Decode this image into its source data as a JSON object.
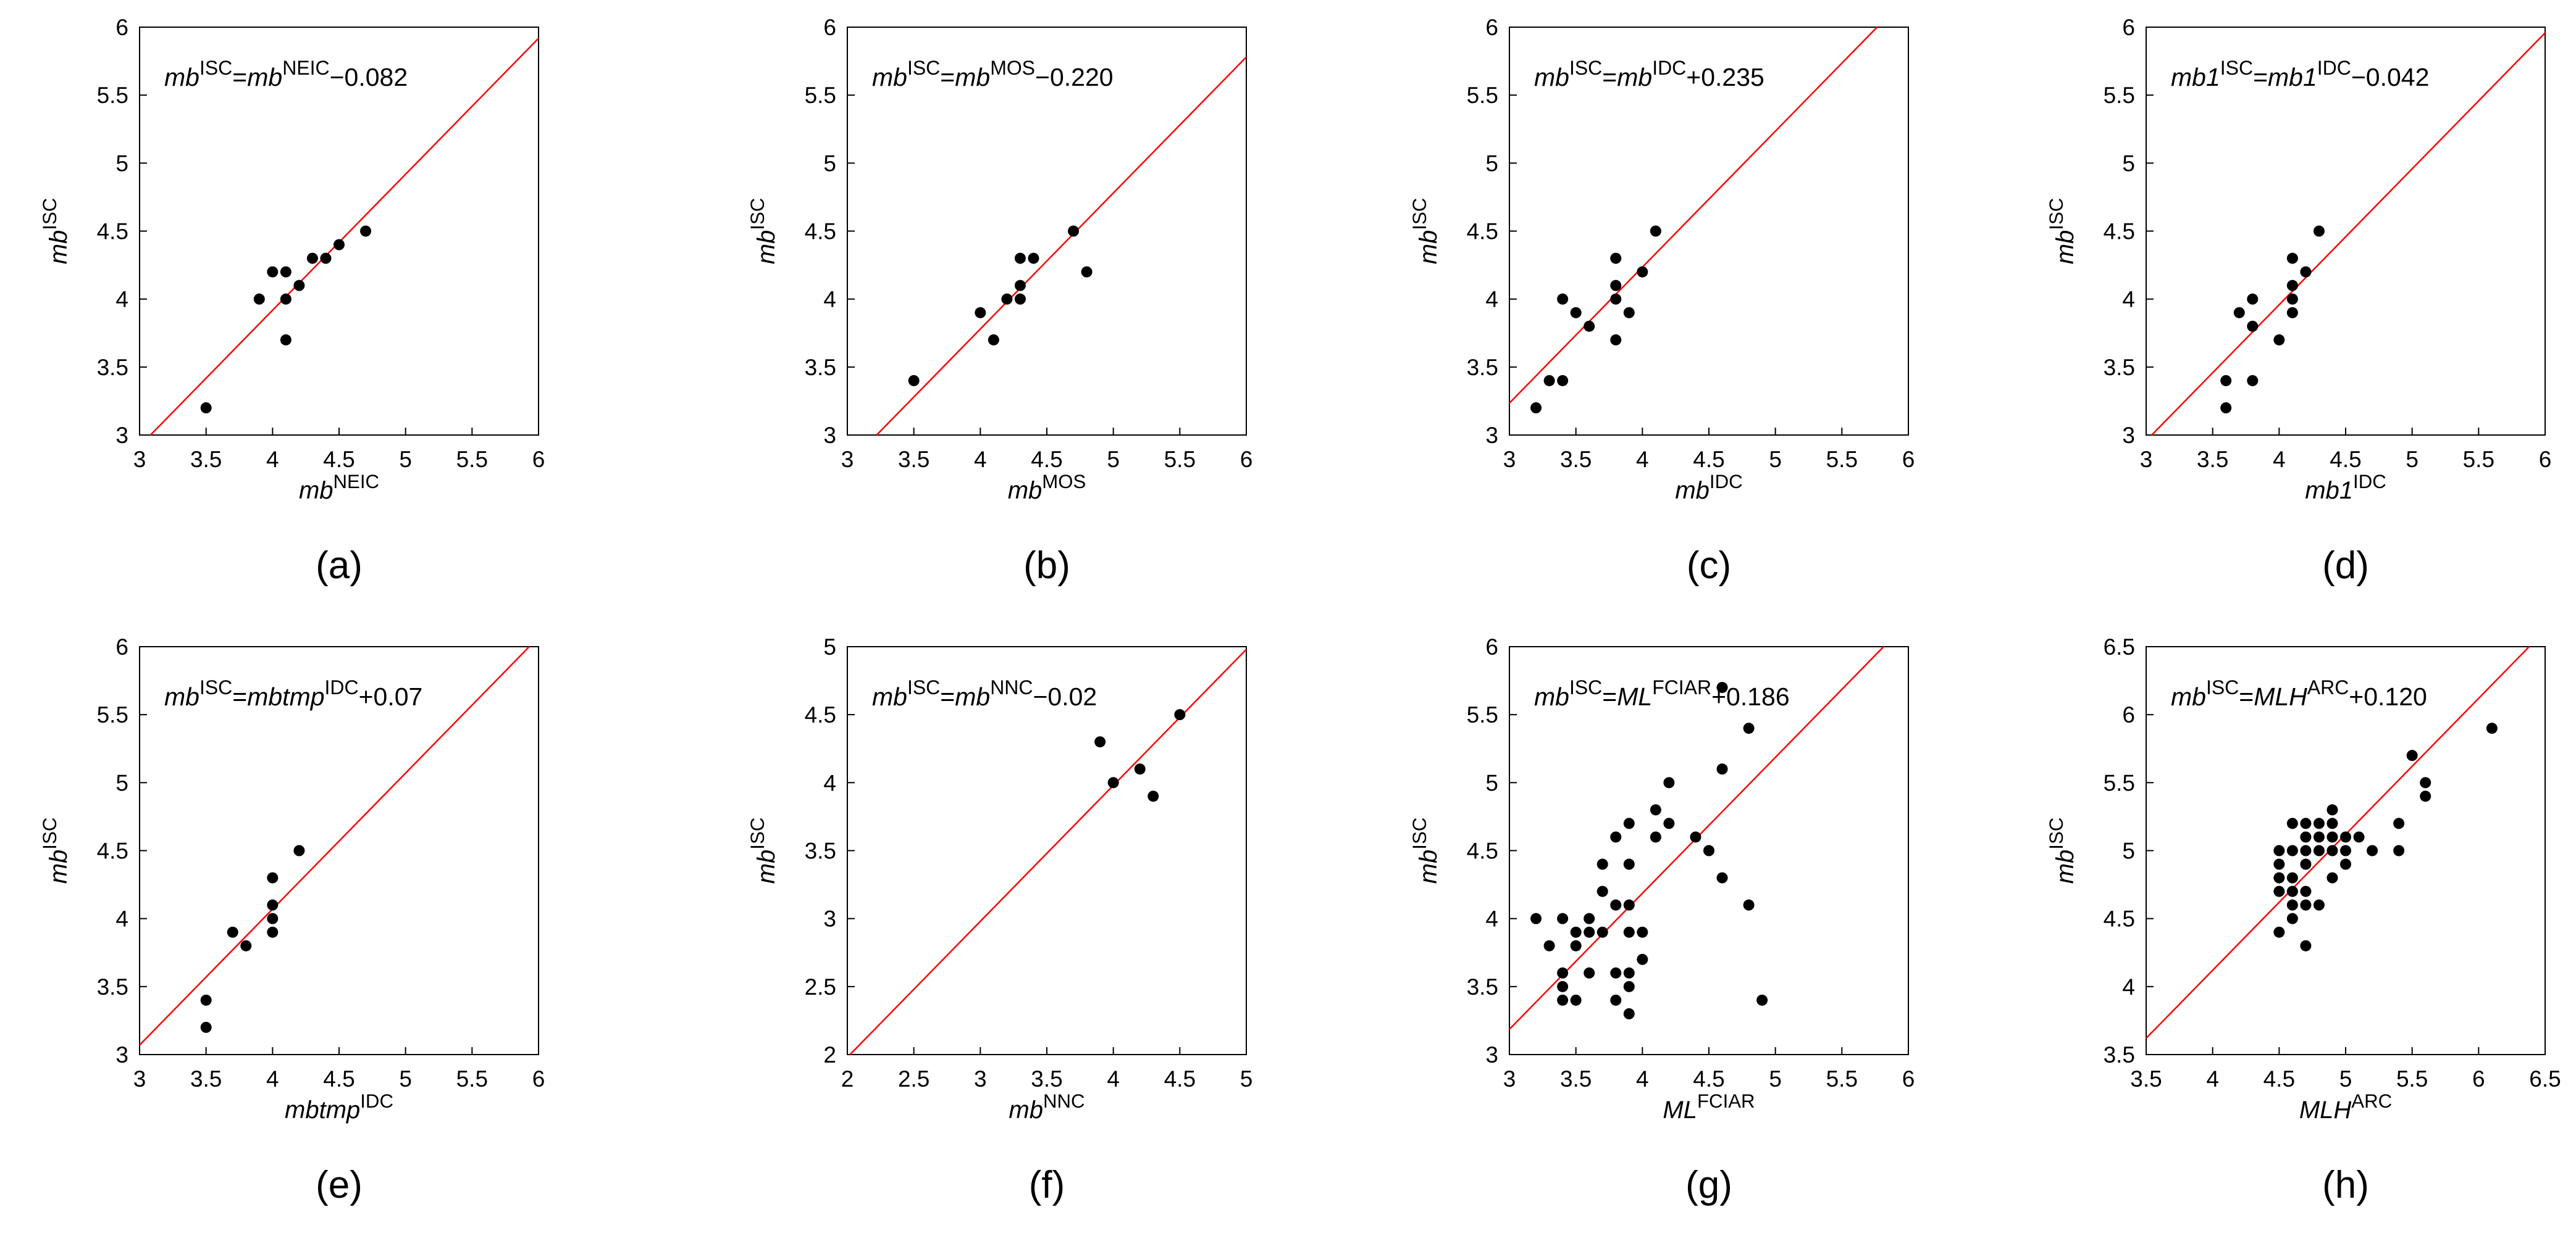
{
  "figure": {
    "panels_count": 8
  },
  "chart_data": [
    {
      "type": "scatter",
      "panel_label": "(a)",
      "equation": {
        "parts": [
          [
            "mb",
            "i"
          ],
          [
            "ISC",
            "sup"
          ],
          [
            "=",
            "n"
          ],
          [
            "mb",
            "i"
          ],
          [
            "NEIC",
            "sup"
          ],
          [
            "−0.082",
            "n"
          ]
        ]
      },
      "xlabel": {
        "parts": [
          [
            "mb",
            "i"
          ],
          [
            "NEIC",
            "sup"
          ]
        ]
      },
      "ylabel": {
        "parts": [
          [
            "mb",
            "i"
          ],
          [
            "ISC",
            "sup"
          ]
        ]
      },
      "xlim": [
        3,
        6
      ],
      "ylim": [
        3,
        6
      ],
      "xticks": [
        3,
        3.5,
        4,
        4.5,
        5,
        5.5,
        6
      ],
      "yticks": [
        3,
        3.5,
        4,
        4.5,
        5,
        5.5,
        6
      ],
      "xtick_labels": [
        "3",
        "3.5",
        "4",
        "4.5",
        "5",
        "5.5",
        "6"
      ],
      "ytick_labels": [
        "3",
        "3.5",
        "4",
        "4.5",
        "5",
        "5.5",
        "6"
      ],
      "fit_line": {
        "slope": 1,
        "intercept": -0.082,
        "color": "#ff0000"
      },
      "point_color": "#000000",
      "points": [
        [
          3.5,
          3.2
        ],
        [
          3.9,
          4.0
        ],
        [
          4.0,
          4.2
        ],
        [
          4.1,
          4.2
        ],
        [
          4.1,
          4.0
        ],
        [
          4.1,
          3.7
        ],
        [
          4.2,
          4.1
        ],
        [
          4.3,
          4.3
        ],
        [
          4.4,
          4.3
        ],
        [
          4.5,
          4.4
        ],
        [
          4.7,
          4.5
        ]
      ]
    },
    {
      "type": "scatter",
      "panel_label": "(b)",
      "equation": {
        "parts": [
          [
            "mb",
            "i"
          ],
          [
            "ISC",
            "sup"
          ],
          [
            "=",
            "n"
          ],
          [
            "mb",
            "i"
          ],
          [
            "MOS",
            "sup"
          ],
          [
            "−0.220",
            "n"
          ]
        ]
      },
      "xlabel": {
        "parts": [
          [
            "mb",
            "i"
          ],
          [
            "MOS",
            "sup"
          ]
        ]
      },
      "ylabel": {
        "parts": [
          [
            "mb",
            "i"
          ],
          [
            "ISC",
            "sup"
          ]
        ]
      },
      "xlim": [
        3,
        6
      ],
      "ylim": [
        3,
        6
      ],
      "xticks": [
        3,
        3.5,
        4,
        4.5,
        5,
        5.5,
        6
      ],
      "yticks": [
        3,
        3.5,
        4,
        4.5,
        5,
        5.5,
        6
      ],
      "xtick_labels": [
        "3",
        "3.5",
        "4",
        "4.5",
        "5",
        "5.5",
        "6"
      ],
      "ytick_labels": [
        "3",
        "3.5",
        "4",
        "4.5",
        "5",
        "5.5",
        "6"
      ],
      "fit_line": {
        "slope": 1,
        "intercept": -0.22,
        "color": "#ff0000"
      },
      "point_color": "#000000",
      "points": [
        [
          3.5,
          3.4
        ],
        [
          4.0,
          3.9
        ],
        [
          4.1,
          3.7
        ],
        [
          4.2,
          4.0
        ],
        [
          4.3,
          4.3
        ],
        [
          4.3,
          4.1
        ],
        [
          4.3,
          4.0
        ],
        [
          4.4,
          4.3
        ],
        [
          4.7,
          4.5
        ],
        [
          4.8,
          4.2
        ]
      ]
    },
    {
      "type": "scatter",
      "panel_label": "(c)",
      "equation": {
        "parts": [
          [
            "mb",
            "i"
          ],
          [
            "ISC",
            "sup"
          ],
          [
            "=",
            "n"
          ],
          [
            "mb",
            "i"
          ],
          [
            "IDC",
            "sup"
          ],
          [
            "+0.235",
            "n"
          ]
        ]
      },
      "xlabel": {
        "parts": [
          [
            "mb",
            "i"
          ],
          [
            "IDC",
            "sup"
          ]
        ]
      },
      "ylabel": {
        "parts": [
          [
            "mb",
            "i"
          ],
          [
            "ISC",
            "sup"
          ]
        ]
      },
      "xlim": [
        3,
        6
      ],
      "ylim": [
        3,
        6
      ],
      "xticks": [
        3,
        3.5,
        4,
        4.5,
        5,
        5.5,
        6
      ],
      "yticks": [
        3,
        3.5,
        4,
        4.5,
        5,
        5.5,
        6
      ],
      "xtick_labels": [
        "3",
        "3.5",
        "4",
        "4.5",
        "5",
        "5.5",
        "6"
      ],
      "ytick_labels": [
        "3",
        "3.5",
        "4",
        "4.5",
        "5",
        "5.5",
        "6"
      ],
      "fit_line": {
        "slope": 1,
        "intercept": 0.235,
        "color": "#ff0000"
      },
      "point_color": "#000000",
      "points": [
        [
          3.2,
          3.2
        ],
        [
          3.3,
          3.4
        ],
        [
          3.4,
          3.4
        ],
        [
          3.4,
          4.0
        ],
        [
          3.5,
          3.9
        ],
        [
          3.6,
          3.8
        ],
        [
          3.8,
          4.3
        ],
        [
          3.8,
          4.1
        ],
        [
          3.8,
          4.0
        ],
        [
          3.8,
          3.7
        ],
        [
          3.9,
          3.9
        ],
        [
          4.0,
          4.2
        ],
        [
          4.1,
          4.5
        ]
      ]
    },
    {
      "type": "scatter",
      "panel_label": "(d)",
      "equation": {
        "parts": [
          [
            "mb1",
            "i"
          ],
          [
            "ISC",
            "sup"
          ],
          [
            "=",
            "n"
          ],
          [
            "mb1",
            "i"
          ],
          [
            "IDC",
            "sup"
          ],
          [
            "−0.042",
            "n"
          ]
        ]
      },
      "xlabel": {
        "parts": [
          [
            "mb1",
            "i"
          ],
          [
            "IDC",
            "sup"
          ]
        ]
      },
      "ylabel": {
        "parts": [
          [
            "mb",
            "i"
          ],
          [
            "ISC",
            "sup"
          ]
        ]
      },
      "xlim": [
        3,
        6
      ],
      "ylim": [
        3,
        6
      ],
      "xticks": [
        3,
        3.5,
        4,
        4.5,
        5,
        5.5,
        6
      ],
      "yticks": [
        3,
        3.5,
        4,
        4.5,
        5,
        5.5,
        6
      ],
      "xtick_labels": [
        "3",
        "3.5",
        "4",
        "4.5",
        "5",
        "5.5",
        "6"
      ],
      "ytick_labels": [
        "3",
        "3.5",
        "4",
        "4.5",
        "5",
        "5.5",
        "6"
      ],
      "fit_line": {
        "slope": 1,
        "intercept": -0.042,
        "color": "#ff0000"
      },
      "point_color": "#000000",
      "points": [
        [
          3.6,
          3.2
        ],
        [
          3.6,
          3.4
        ],
        [
          3.7,
          3.9
        ],
        [
          3.8,
          4.0
        ],
        [
          3.8,
          3.8
        ],
        [
          3.8,
          3.4
        ],
        [
          4.0,
          3.7
        ],
        [
          4.1,
          4.3
        ],
        [
          4.1,
          4.1
        ],
        [
          4.1,
          4.0
        ],
        [
          4.1,
          3.9
        ],
        [
          4.2,
          4.2
        ],
        [
          4.3,
          4.5
        ]
      ]
    },
    {
      "type": "scatter",
      "panel_label": "(e)",
      "equation": {
        "parts": [
          [
            "mb",
            "i"
          ],
          [
            "ISC",
            "sup"
          ],
          [
            "=",
            "n"
          ],
          [
            "mbtmp",
            "i"
          ],
          [
            "IDC",
            "sup"
          ],
          [
            "+0.07",
            "n"
          ]
        ]
      },
      "xlabel": {
        "parts": [
          [
            "mbtmp",
            "i"
          ],
          [
            "IDC",
            "sup"
          ]
        ]
      },
      "ylabel": {
        "parts": [
          [
            "mb",
            "i"
          ],
          [
            "ISC",
            "sup"
          ]
        ]
      },
      "xlim": [
        3,
        6
      ],
      "ylim": [
        3,
        6
      ],
      "xticks": [
        3,
        3.5,
        4,
        4.5,
        5,
        5.5,
        6
      ],
      "yticks": [
        3,
        3.5,
        4,
        4.5,
        5,
        5.5,
        6
      ],
      "xtick_labels": [
        "3",
        "3.5",
        "4",
        "4.5",
        "5",
        "5.5",
        "6"
      ],
      "ytick_labels": [
        "3",
        "3.5",
        "4",
        "4.5",
        "5",
        "5.5",
        "6"
      ],
      "fit_line": {
        "slope": 1,
        "intercept": 0.07,
        "color": "#ff0000"
      },
      "point_color": "#000000",
      "points": [
        [
          3.5,
          3.4
        ],
        [
          3.5,
          3.2
        ],
        [
          3.7,
          3.9
        ],
        [
          3.8,
          3.8
        ],
        [
          4.0,
          4.3
        ],
        [
          4.0,
          4.1
        ],
        [
          4.0,
          4.0
        ],
        [
          4.0,
          3.9
        ],
        [
          4.2,
          4.5
        ]
      ]
    },
    {
      "type": "scatter",
      "panel_label": "(f)",
      "equation": {
        "parts": [
          [
            "mb",
            "i"
          ],
          [
            "ISC",
            "sup"
          ],
          [
            "=",
            "n"
          ],
          [
            "mb",
            "i"
          ],
          [
            "NNC",
            "sup"
          ],
          [
            "−0.02",
            "n"
          ]
        ]
      },
      "xlabel": {
        "parts": [
          [
            "mb",
            "i"
          ],
          [
            "NNC",
            "sup"
          ]
        ]
      },
      "ylabel": {
        "parts": [
          [
            "mb",
            "i"
          ],
          [
            "ISC",
            "sup"
          ]
        ]
      },
      "xlim": [
        2,
        5
      ],
      "ylim": [
        2,
        5
      ],
      "xticks": [
        2,
        2.5,
        3,
        3.5,
        4,
        4.5,
        5
      ],
      "yticks": [
        2,
        2.5,
        3,
        3.5,
        4,
        4.5,
        5
      ],
      "xtick_labels": [
        "2",
        "2.5",
        "3",
        "3.5",
        "4",
        "4.5",
        "5"
      ],
      "ytick_labels": [
        "2",
        "2.5",
        "3",
        "3.5",
        "4",
        "4.5",
        "5"
      ],
      "fit_line": {
        "slope": 1,
        "intercept": -0.02,
        "color": "#ff0000"
      },
      "point_color": "#000000",
      "points": [
        [
          3.9,
          4.3
        ],
        [
          4.0,
          4.0
        ],
        [
          4.2,
          4.1
        ],
        [
          4.3,
          3.9
        ],
        [
          4.5,
          4.5
        ]
      ]
    },
    {
      "type": "scatter",
      "panel_label": "(g)",
      "equation": {
        "parts": [
          [
            "mb",
            "i"
          ],
          [
            "ISC",
            "sup"
          ],
          [
            "=",
            "n"
          ],
          [
            "ML",
            "i"
          ],
          [
            "FCIAR",
            "sup"
          ],
          [
            "+0.186",
            "n"
          ]
        ]
      },
      "xlabel": {
        "parts": [
          [
            "ML",
            "i"
          ],
          [
            "FCIAR",
            "sup"
          ]
        ]
      },
      "ylabel": {
        "parts": [
          [
            "mb",
            "i"
          ],
          [
            "ISC",
            "sup"
          ]
        ]
      },
      "xlim": [
        3,
        6
      ],
      "ylim": [
        3,
        6
      ],
      "xticks": [
        3,
        3.5,
        4,
        4.5,
        5,
        5.5,
        6
      ],
      "yticks": [
        3,
        3.5,
        4,
        4.5,
        5,
        5.5,
        6
      ],
      "xtick_labels": [
        "3",
        "3.5",
        "4",
        "4.5",
        "5",
        "5.5",
        "6"
      ],
      "ytick_labels": [
        "3",
        "3.5",
        "4",
        "4.5",
        "5",
        "5.5",
        "6"
      ],
      "fit_line": {
        "slope": 1,
        "intercept": 0.186,
        "color": "#ff0000"
      },
      "point_color": "#000000",
      "points": [
        [
          3.2,
          4.0
        ],
        [
          3.3,
          3.8
        ],
        [
          3.4,
          4.0
        ],
        [
          3.4,
          3.6
        ],
        [
          3.4,
          3.5
        ],
        [
          3.4,
          3.4
        ],
        [
          3.5,
          3.9
        ],
        [
          3.5,
          3.8
        ],
        [
          3.5,
          3.4
        ],
        [
          3.6,
          4.0
        ],
        [
          3.6,
          3.9
        ],
        [
          3.6,
          3.6
        ],
        [
          3.7,
          4.4
        ],
        [
          3.7,
          4.2
        ],
        [
          3.7,
          3.9
        ],
        [
          3.8,
          4.6
        ],
        [
          3.8,
          4.1
        ],
        [
          3.8,
          3.6
        ],
        [
          3.8,
          3.4
        ],
        [
          3.9,
          4.7
        ],
        [
          3.9,
          4.4
        ],
        [
          3.9,
          4.1
        ],
        [
          3.9,
          3.9
        ],
        [
          3.9,
          3.6
        ],
        [
          3.9,
          3.5
        ],
        [
          3.9,
          3.3
        ],
        [
          4.0,
          3.9
        ],
        [
          4.0,
          3.7
        ],
        [
          4.1,
          4.8
        ],
        [
          4.1,
          4.6
        ],
        [
          4.2,
          5.0
        ],
        [
          4.2,
          4.7
        ],
        [
          4.4,
          4.6
        ],
        [
          4.5,
          4.5
        ],
        [
          4.6,
          5.7
        ],
        [
          4.6,
          5.1
        ],
        [
          4.6,
          4.3
        ],
        [
          4.8,
          5.4
        ],
        [
          4.8,
          4.1
        ],
        [
          4.9,
          3.4
        ]
      ]
    },
    {
      "type": "scatter",
      "panel_label": "(h)",
      "equation": {
        "parts": [
          [
            "mb",
            "i"
          ],
          [
            "ISC",
            "sup"
          ],
          [
            "=",
            "n"
          ],
          [
            "MLH",
            "i"
          ],
          [
            "ARC",
            "sup"
          ],
          [
            "+0.120",
            "n"
          ]
        ]
      },
      "xlabel": {
        "parts": [
          [
            "MLH",
            "i"
          ],
          [
            "ARC",
            "sup"
          ]
        ]
      },
      "ylabel": {
        "parts": [
          [
            "mb",
            "i"
          ],
          [
            "ISC",
            "sup"
          ]
        ]
      },
      "xlim": [
        3.5,
        6.5
      ],
      "ylim": [
        3.5,
        6.5
      ],
      "xticks": [
        3.5,
        4,
        4.5,
        5,
        5.5,
        6,
        6.5
      ],
      "yticks": [
        3.5,
        4,
        4.5,
        5,
        5.5,
        6,
        6.5
      ],
      "xtick_labels": [
        "3.5",
        "4",
        "4.5",
        "5",
        "5.5",
        "6",
        "6.5"
      ],
      "ytick_labels": [
        "3.5",
        "4",
        "4.5",
        "5",
        "5.5",
        "6",
        "6.5"
      ],
      "fit_line": {
        "slope": 1,
        "intercept": 0.12,
        "color": "#ff0000"
      },
      "point_color": "#000000",
      "points": [
        [
          4.5,
          5.0
        ],
        [
          4.5,
          4.9
        ],
        [
          4.5,
          4.8
        ],
        [
          4.5,
          4.7
        ],
        [
          4.5,
          4.4
        ],
        [
          4.6,
          5.2
        ],
        [
          4.6,
          5.0
        ],
        [
          4.6,
          4.8
        ],
        [
          4.6,
          4.7
        ],
        [
          4.6,
          4.6
        ],
        [
          4.6,
          4.5
        ],
        [
          4.7,
          5.2
        ],
        [
          4.7,
          5.1
        ],
        [
          4.7,
          5.0
        ],
        [
          4.7,
          4.9
        ],
        [
          4.7,
          4.7
        ],
        [
          4.7,
          4.6
        ],
        [
          4.7,
          4.3
        ],
        [
          4.8,
          5.2
        ],
        [
          4.8,
          5.1
        ],
        [
          4.8,
          5.0
        ],
        [
          4.8,
          4.6
        ],
        [
          4.9,
          5.3
        ],
        [
          4.9,
          5.2
        ],
        [
          4.9,
          5.1
        ],
        [
          4.9,
          5.0
        ],
        [
          4.9,
          4.8
        ],
        [
          5.0,
          5.1
        ],
        [
          5.0,
          5.0
        ],
        [
          5.0,
          4.9
        ],
        [
          5.1,
          5.1
        ],
        [
          5.2,
          5.0
        ],
        [
          5.4,
          5.2
        ],
        [
          5.4,
          5.0
        ],
        [
          5.5,
          5.7
        ],
        [
          5.6,
          5.5
        ],
        [
          5.6,
          5.4
        ],
        [
          6.1,
          5.9
        ]
      ]
    }
  ]
}
